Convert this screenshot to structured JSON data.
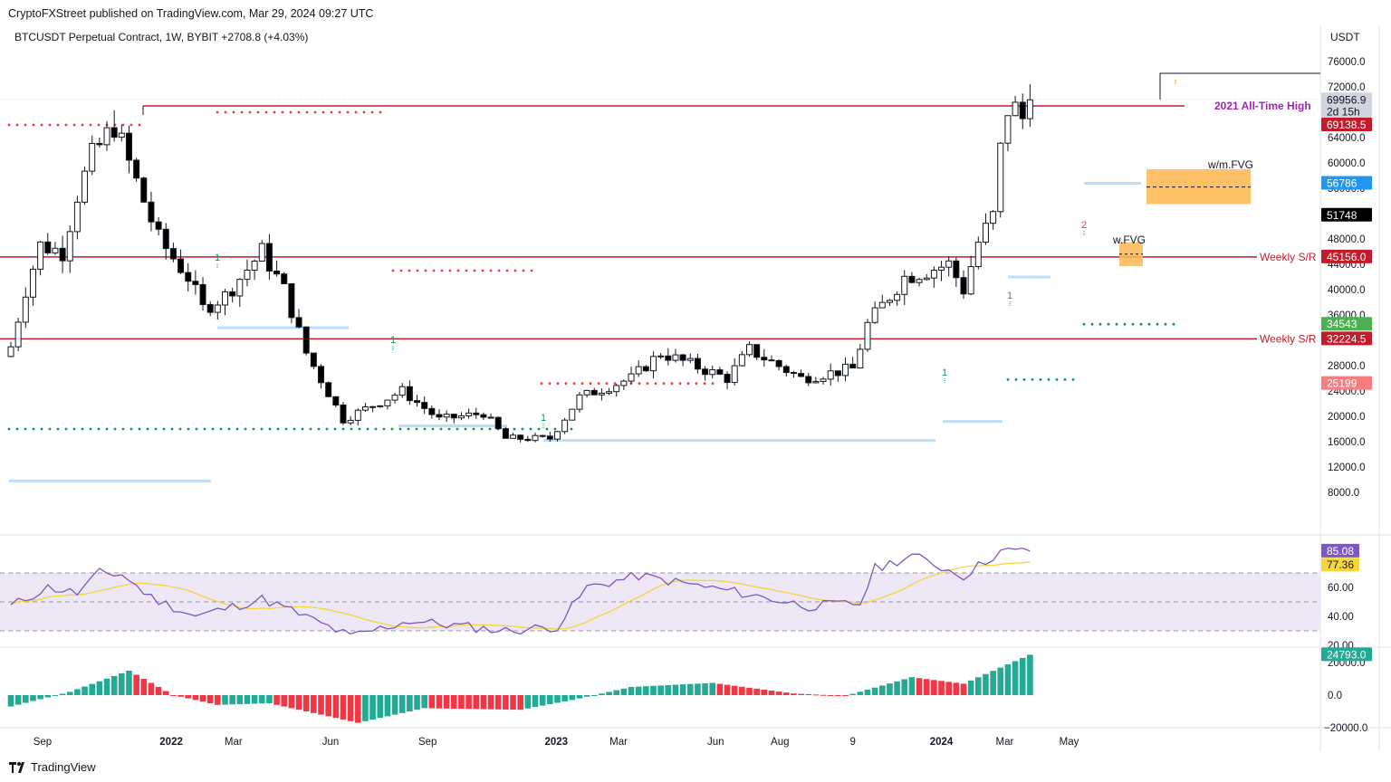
{
  "header": {
    "publisher": "CryptoFXStreet published on TradingView.com, Mar 29, 2024 09:27 UTC",
    "symbol_line": "BTCUSDT Perpetual Contract, 1W, BYBIT  +2708.8 (+4.03%)",
    "currency": "USDT"
  },
  "footer": {
    "brand": "TradingView"
  },
  "colors": {
    "up": "#ffffff",
    "down": "#000000",
    "wick": "#131722",
    "resistance": "#c21b2a",
    "ath_label": "#9c27b0",
    "fvg": "#ffb74d",
    "blue_level": "#bbdefb",
    "dots_red": "#f23645",
    "dots_green": "#089950",
    "rsi": "#7e57c2",
    "rsi_ma": "#f6d63a",
    "rsi_band": "#ede7f6",
    "hist_up": "#22ab94",
    "hist_down": "#f23645"
  },
  "chart_data": {
    "type": "candlestick",
    "timeframe": "1W",
    "x_ticks": [
      "Sep",
      "2022",
      "Mar",
      "Jun",
      "Sep",
      "2023",
      "Mar",
      "Jun",
      "Aug",
      "9",
      "2024",
      "Mar",
      "May"
    ],
    "y_ticks": [
      "76000.0",
      "72000.0",
      "64000.0",
      "60000.0",
      "56000.0",
      "48000.0",
      "44000.0",
      "40000.0",
      "36000.0",
      "28000.0",
      "24000.0",
      "20000.0",
      "16000.0",
      "12000.0",
      "8000.0"
    ],
    "ylim": [
      4000,
      80000
    ],
    "close_path": [
      {
        "date": "2021-08-02",
        "close": 31000
      },
      {
        "date": "2021-08-16",
        "close": 40000
      },
      {
        "date": "2021-08-30",
        "close": 47000
      },
      {
        "date": "2021-09-20",
        "close": 46000
      },
      {
        "date": "2021-10-04",
        "close": 55000
      },
      {
        "date": "2021-10-18",
        "close": 61000
      },
      {
        "date": "2021-11-08",
        "close": 66000
      },
      {
        "date": "2021-11-29",
        "close": 57000
      },
      {
        "date": "2021-12-20",
        "close": 48000
      },
      {
        "date": "2022-01-17",
        "close": 42000
      },
      {
        "date": "2022-01-31",
        "close": 37000
      },
      {
        "date": "2022-02-21",
        "close": 39000
      },
      {
        "date": "2022-03-28",
        "close": 46000
      },
      {
        "date": "2022-04-18",
        "close": 40000
      },
      {
        "date": "2022-05-09",
        "close": 30000
      },
      {
        "date": "2022-06-13",
        "close": 19500
      },
      {
        "date": "2022-08-08",
        "close": 24000
      },
      {
        "date": "2022-09-12",
        "close": 19500
      },
      {
        "date": "2022-10-24",
        "close": 20500
      },
      {
        "date": "2022-11-14",
        "close": 16500
      },
      {
        "date": "2022-12-26",
        "close": 16500
      },
      {
        "date": "2023-01-23",
        "close": 23000
      },
      {
        "date": "2023-03-13",
        "close": 26000
      },
      {
        "date": "2023-04-10",
        "close": 30000
      },
      {
        "date": "2023-06-12",
        "close": 26000
      },
      {
        "date": "2023-07-03",
        "close": 30500
      },
      {
        "date": "2023-08-21",
        "close": 26000
      },
      {
        "date": "2023-10-09",
        "close": 27500
      },
      {
        "date": "2023-10-23",
        "close": 34500
      },
      {
        "date": "2023-11-27",
        "close": 42000
      },
      {
        "date": "2024-01-08",
        "close": 44000
      },
      {
        "date": "2024-01-22",
        "close": 40000
      },
      {
        "date": "2024-02-05",
        "close": 47500
      },
      {
        "date": "2024-02-19",
        "close": 51500
      },
      {
        "date": "2024-02-26",
        "close": 62000
      },
      {
        "date": "2024-03-04",
        "close": 68500
      },
      {
        "date": "2024-03-11",
        "close": 68500
      },
      {
        "date": "2024-03-18",
        "close": 67000
      },
      {
        "date": "2024-03-25",
        "close": 69956.9
      }
    ],
    "price_labels": [
      {
        "text": "69956.9",
        "price": 69956.9,
        "bg": "#d1d4dc",
        "fg": "#131722"
      },
      {
        "text": "2d 15h",
        "price": 68100,
        "bg": "#d1d4dc",
        "fg": "#131722"
      },
      {
        "text": "69138.5",
        "price": 66000,
        "bg": "#c21b2a",
        "fg": "#ffffff"
      },
      {
        "text": "56786",
        "price": 56786,
        "bg": "#2196f3",
        "fg": "#ffffff"
      },
      {
        "text": "51748",
        "price": 51748,
        "bg": "#000000",
        "fg": "#ffffff"
      },
      {
        "text": "45156.0",
        "price": 45156,
        "bg": "#c21b2a",
        "fg": "#ffffff"
      },
      {
        "text": "34543",
        "price": 34543,
        "bg": "#4caf50",
        "fg": "#ffffff"
      },
      {
        "text": "32224.5",
        "price": 32224.5,
        "bg": "#c21b2a",
        "fg": "#ffffff"
      },
      {
        "text": "25199",
        "price": 25199,
        "bg": "#f77c80",
        "fg": "#ffffff"
      }
    ],
    "levels": [
      {
        "name": "2021 All-Time High",
        "price": 69000
      },
      {
        "name": "Weekly S/R",
        "price": 45156
      },
      {
        "name": "Weekly S/R",
        "price": 32224.5
      }
    ],
    "fvg_labels": [
      "w/m.FVG",
      "w.FVG"
    ],
    "annotations": [
      "1",
      "1",
      "1",
      "1",
      "1",
      "2"
    ],
    "rsi": {
      "ylim": [
        20,
        95
      ],
      "y_ticks": [
        "60.00",
        "40.00",
        "20.00"
      ],
      "value_label": "85.08",
      "ma_label": "77.36",
      "bands": [
        70,
        50,
        30
      ],
      "path": [
        {
          "date": "2021-08-02",
          "rsi": 47
        },
        {
          "date": "2021-09-06",
          "rsi": 60
        },
        {
          "date": "2021-10-04",
          "rsi": 56
        },
        {
          "date": "2021-10-25",
          "rsi": 70
        },
        {
          "date": "2021-11-15",
          "rsi": 69
        },
        {
          "date": "2021-12-13",
          "rsi": 53
        },
        {
          "date": "2022-01-24",
          "rsi": 40
        },
        {
          "date": "2022-03-28",
          "rsi": 52
        },
        {
          "date": "2022-04-25",
          "rsi": 44
        },
        {
          "date": "2022-06-20",
          "rsi": 26
        },
        {
          "date": "2022-08-15",
          "rsi": 37
        },
        {
          "date": "2022-11-14",
          "rsi": 30
        },
        {
          "date": "2023-01-02",
          "rsi": 33
        },
        {
          "date": "2023-01-30",
          "rsi": 60
        },
        {
          "date": "2023-03-20",
          "rsi": 68
        },
        {
          "date": "2023-06-19",
          "rsi": 57
        },
        {
          "date": "2023-08-28",
          "rsi": 47
        },
        {
          "date": "2023-10-16",
          "rsi": 49
        },
        {
          "date": "2023-10-30",
          "rsi": 73
        },
        {
          "date": "2023-12-04",
          "rsi": 82
        },
        {
          "date": "2024-01-22",
          "rsi": 68
        },
        {
          "date": "2024-02-26",
          "rsi": 85
        },
        {
          "date": "2024-03-25",
          "rsi": 85.08
        }
      ]
    },
    "histogram": {
      "ylim": [
        -23000,
        27000
      ],
      "y_ticks": [
        "20000.0",
        "0.0",
        "−20000.0"
      ],
      "value_label": "24793.0",
      "path": [
        {
          "date": "2021-08-02",
          "value": -7000
        },
        {
          "date": "2021-09-27",
          "value": 2000
        },
        {
          "date": "2021-11-22",
          "value": 15000
        },
        {
          "date": "2022-01-03",
          "value": 0
        },
        {
          "date": "2022-02-14",
          "value": -6000
        },
        {
          "date": "2022-04-04",
          "value": -5000
        },
        {
          "date": "2022-06-27",
          "value": -17000
        },
        {
          "date": "2022-08-29",
          "value": -8000
        },
        {
          "date": "2022-11-28",
          "value": -9000
        },
        {
          "date": "2023-01-16",
          "value": -3000
        },
        {
          "date": "2023-03-13",
          "value": 5000
        },
        {
          "date": "2023-05-29",
          "value": 7500
        },
        {
          "date": "2023-08-14",
          "value": 1000
        },
        {
          "date": "2023-10-02",
          "value": -500
        },
        {
          "date": "2023-12-04",
          "value": 11000
        },
        {
          "date": "2024-01-22",
          "value": 7000
        },
        {
          "date": "2024-03-25",
          "value": 24793
        }
      ]
    }
  }
}
